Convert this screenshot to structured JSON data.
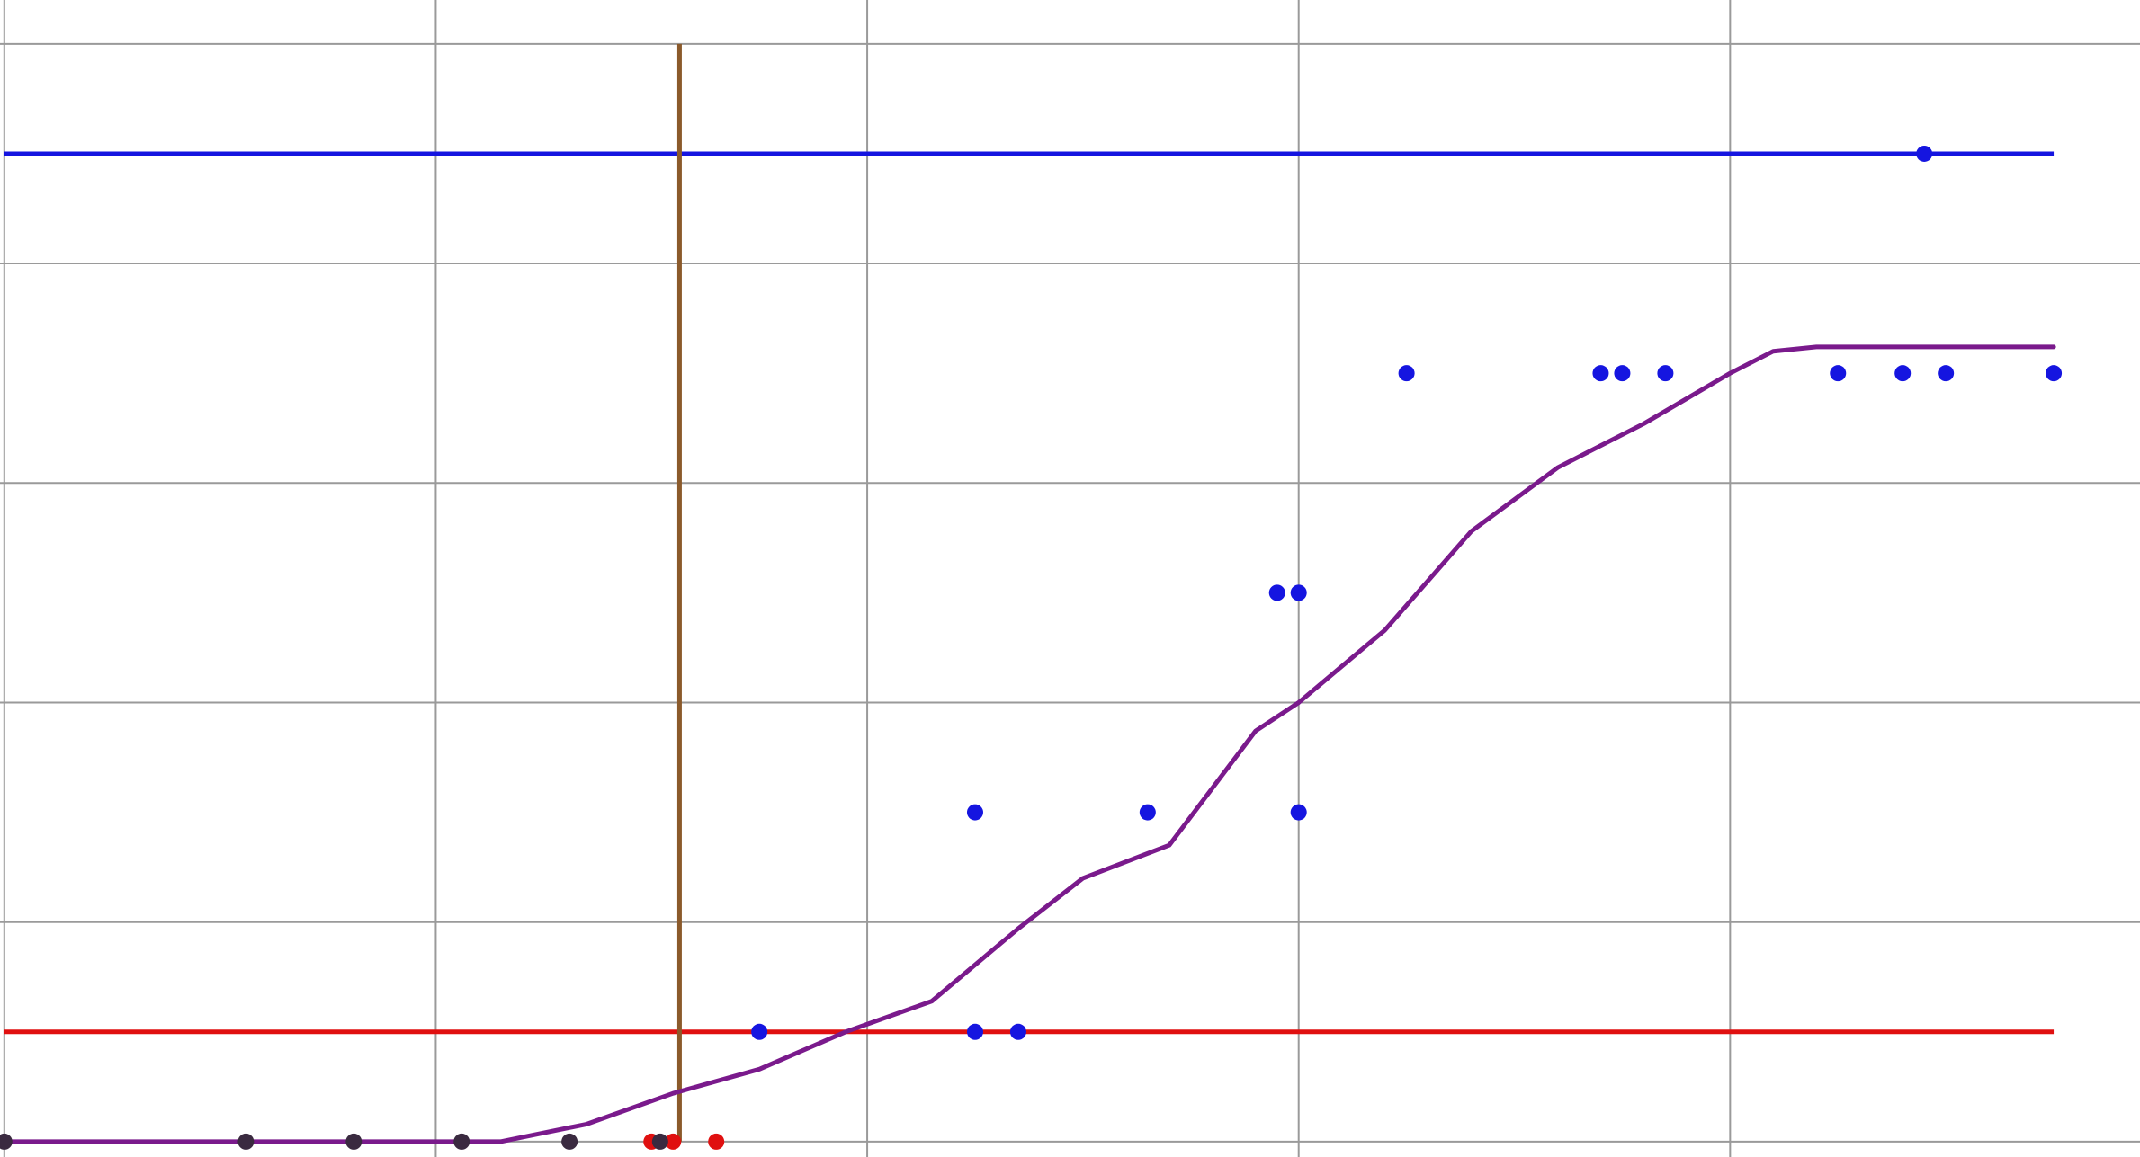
{
  "chart_data": {
    "type": "scatter",
    "title": "",
    "xlabel": "",
    "ylabel": "",
    "xlim": [
      -0.01,
      4.95
    ],
    "ylim": [
      -0.07,
      5.2
    ],
    "grid": true,
    "x_gridlines": [
      0,
      1,
      2,
      3,
      4
    ],
    "y_gridlines": [
      0,
      1,
      2,
      3,
      4,
      5
    ],
    "reference_lines": {
      "horizontal": [
        {
          "y": 0.5,
          "x_range": [
            0,
            4.75
          ],
          "color": "#e01010"
        },
        {
          "y": 4.5,
          "x_range": [
            0,
            4.75
          ],
          "color": "#1515e0"
        }
      ],
      "vertical": [
        {
          "x": 1.565,
          "y_range": [
            0,
            5
          ],
          "color": "#8b5a2b"
        }
      ]
    },
    "curve": {
      "color": "#7a1a8c",
      "points": [
        [
          0,
          0
        ],
        [
          1.15,
          0
        ],
        [
          1.35,
          0.08
        ],
        [
          1.55,
          0.22
        ],
        [
          1.75,
          0.33
        ],
        [
          1.95,
          0.5
        ],
        [
          2.15,
          0.64
        ],
        [
          2.35,
          0.97
        ],
        [
          2.5,
          1.2
        ],
        [
          2.7,
          1.35
        ],
        [
          2.9,
          1.87
        ],
        [
          3.0,
          2.0
        ],
        [
          3.2,
          2.33
        ],
        [
          3.4,
          2.78
        ],
        [
          3.6,
          3.07
        ],
        [
          3.8,
          3.27
        ],
        [
          4.0,
          3.5
        ],
        [
          4.1,
          3.6
        ],
        [
          4.2,
          3.62
        ],
        [
          4.75,
          3.62
        ]
      ]
    },
    "series": [
      {
        "color": "#1515e0",
        "points": [
          [
            1.75,
            0.5
          ],
          [
            2.25,
            0.5
          ],
          [
            2.35,
            0.5
          ],
          [
            2.25,
            1.5
          ],
          [
            2.65,
            1.5
          ],
          [
            3.0,
            1.5
          ],
          [
            2.95,
            2.5
          ],
          [
            3.0,
            2.5
          ],
          [
            3.25,
            3.5
          ],
          [
            3.7,
            3.5
          ],
          [
            3.75,
            3.5
          ],
          [
            3.85,
            3.5
          ],
          [
            4.25,
            3.5
          ],
          [
            4.4,
            3.5
          ],
          [
            4.5,
            3.5
          ],
          [
            4.75,
            3.5
          ],
          [
            4.45,
            4.5
          ]
        ]
      },
      {
        "color": "#e01010",
        "points": [
          [
            1.5,
            0
          ],
          [
            1.55,
            0
          ],
          [
            1.65,
            0
          ]
        ]
      },
      {
        "color": "#3a2a40",
        "points": [
          [
            0,
            0
          ],
          [
            0.56,
            0
          ],
          [
            0.81,
            0
          ],
          [
            1.06,
            0
          ],
          [
            1.31,
            0
          ],
          [
            1.52,
            0
          ]
        ]
      }
    ]
  }
}
